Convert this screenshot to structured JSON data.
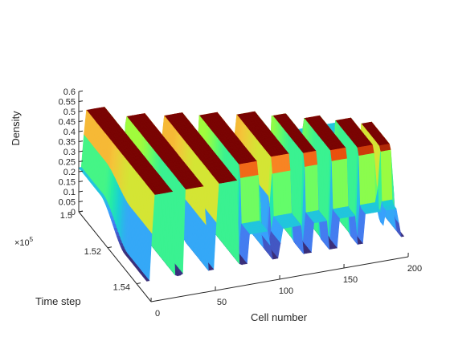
{
  "chart_data": {
    "type": "surface3d",
    "colormap": "turbo",
    "xlabel": "Cell number",
    "ylabel": "Time step",
    "zlabel": "Density",
    "y_exponent_label": "×10",
    "y_exponent_power": "5",
    "xlim": [
      0,
      200
    ],
    "ylim": [
      150000,
      155000
    ],
    "zlim": [
      0,
      0.6
    ],
    "x_ticks": [
      {
        "value": 0,
        "label": "0"
      },
      {
        "value": 50,
        "label": "50"
      },
      {
        "value": 100,
        "label": "100"
      },
      {
        "value": 150,
        "label": "150"
      },
      {
        "value": 200,
        "label": "200"
      }
    ],
    "y_ticks": [
      {
        "value": 150000,
        "label": "1.5"
      },
      {
        "value": 152000,
        "label": "1.52"
      },
      {
        "value": 154000,
        "label": "1.54"
      }
    ],
    "z_ticks": [
      {
        "value": 0,
        "label": "0"
      },
      {
        "value": 0.05,
        "label": "0.05"
      },
      {
        "value": 0.1,
        "label": "0.1"
      },
      {
        "value": 0.15,
        "label": "0.15"
      },
      {
        "value": 0.2,
        "label": "0.2"
      },
      {
        "value": 0.25,
        "label": "0.25"
      },
      {
        "value": 0.3,
        "label": "0.3"
      },
      {
        "value": 0.35,
        "label": "0.35"
      },
      {
        "value": 0.4,
        "label": "0.4"
      },
      {
        "value": 0.45,
        "label": "0.45"
      },
      {
        "value": 0.5,
        "label": "0.5"
      },
      {
        "value": 0.55,
        "label": "0.55"
      },
      {
        "value": 0.6,
        "label": "0.6"
      }
    ],
    "surface": {
      "description_values": "density over cell number and time step",
      "x_range": [
        0,
        200
      ],
      "y_range": [
        150000,
        154700
      ],
      "z_range": [
        0.05,
        0.5
      ],
      "jam_density": 0.5,
      "free_flow_density": 0.22,
      "bands": [
        {
          "x_start": 5,
          "x_end": 20,
          "y_start": 150000,
          "y_end": 154700
        },
        {
          "x_start": 30,
          "x_end": 45,
          "y_start": 150600,
          "y_end": 154700
        },
        {
          "x_start": 55,
          "x_end": 70,
          "y_start": 150900,
          "y_end": 154700
        },
        {
          "x_start": 80,
          "x_end": 95,
          "y_start": 151200,
          "y_end": 154000
        },
        {
          "x_start": 105,
          "x_end": 120,
          "y_start": 151500,
          "y_end": 153900
        },
        {
          "x_start": 130,
          "x_end": 140,
          "y_start": 151800,
          "y_end": 154000
        },
        {
          "x_start": 150,
          "x_end": 162,
          "y_start": 152200,
          "y_end": 154100
        },
        {
          "x_start": 170,
          "x_end": 182,
          "y_start": 152600,
          "y_end": 154200
        },
        {
          "x_start": 185,
          "x_end": 195,
          "y_start": 153000,
          "y_end": 154300
        }
      ]
    }
  }
}
